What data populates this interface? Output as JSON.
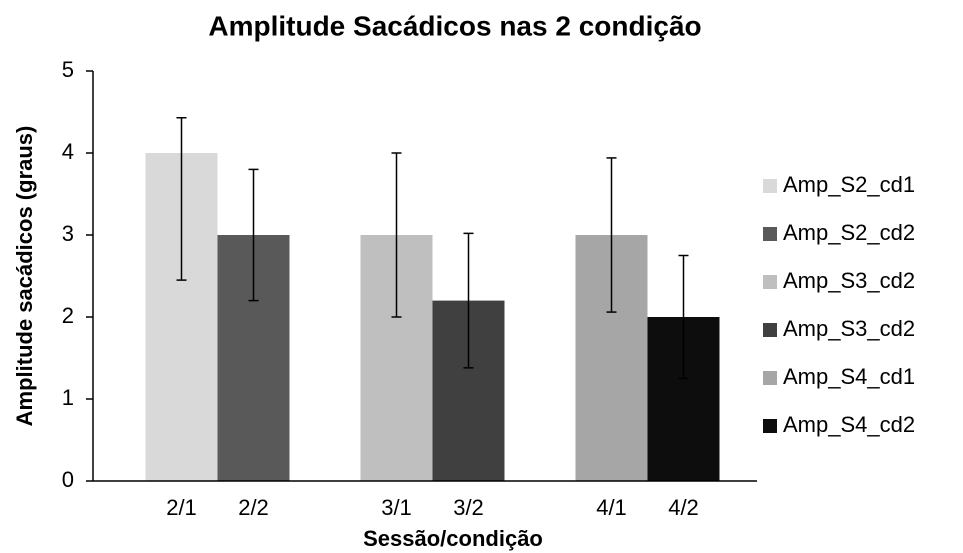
{
  "chart_data": {
    "type": "bar",
    "title": "Amplitude Sacádicos nas 2 condição",
    "x_label": "Sessão/condição",
    "y_label": "Amplitude sacádicos (graus)",
    "categories": [
      "2/1",
      "2/2",
      "3/1",
      "3/2",
      "4/1",
      "4/2"
    ],
    "series": [
      {
        "name": "Amp_S2_cd1",
        "color": "#d9d9d9",
        "values": [
          4,
          null,
          null,
          null,
          null,
          null
        ],
        "error_minus": [
          1.55,
          null,
          null,
          null,
          null,
          null
        ],
        "error_plus": [
          0.43,
          null,
          null,
          null,
          null,
          null
        ]
      },
      {
        "name": "Amp_S2_cd2",
        "color": "#595959",
        "values": [
          null,
          3,
          null,
          null,
          null,
          null
        ],
        "error_minus": [
          null,
          0.8,
          null,
          null,
          null,
          null
        ],
        "error_plus": [
          null,
          0.8,
          null,
          null,
          null,
          null
        ]
      },
      {
        "name": "Amp_S3_cd2",
        "color": "#bfbfbf",
        "values": [
          null,
          null,
          3,
          null,
          null,
          null
        ],
        "error_minus": [
          null,
          null,
          1,
          null,
          null,
          null
        ],
        "error_plus": [
          null,
          null,
          1,
          null,
          null,
          null
        ]
      },
      {
        "name": "Amp_S3_cd2",
        "color": "#404040",
        "values": [
          null,
          null,
          null,
          2.2,
          null,
          null
        ],
        "error_minus": [
          null,
          null,
          null,
          0.82,
          null,
          null
        ],
        "error_plus": [
          null,
          null,
          null,
          0.82,
          null,
          null
        ]
      },
      {
        "name": "Amp_S4_cd1",
        "color": "#a6a6a6",
        "values": [
          null,
          null,
          null,
          null,
          3,
          null
        ],
        "error_minus": [
          null,
          null,
          null,
          null,
          0.94,
          null
        ],
        "error_plus": [
          null,
          null,
          null,
          null,
          0.94,
          null
        ]
      },
      {
        "name": "Amp_S4_cd2",
        "color": "#0d0d0d",
        "values": [
          null,
          null,
          null,
          null,
          null,
          2
        ],
        "error_minus": [
          null,
          null,
          null,
          null,
          null,
          0.75
        ],
        "error_plus": [
          null,
          null,
          null,
          null,
          null,
          0.75
        ]
      }
    ],
    "ylim": [
      0,
      5
    ],
    "yticks": [
      0,
      1,
      2,
      3,
      4,
      5
    ],
    "grid": false,
    "legend": "right"
  }
}
